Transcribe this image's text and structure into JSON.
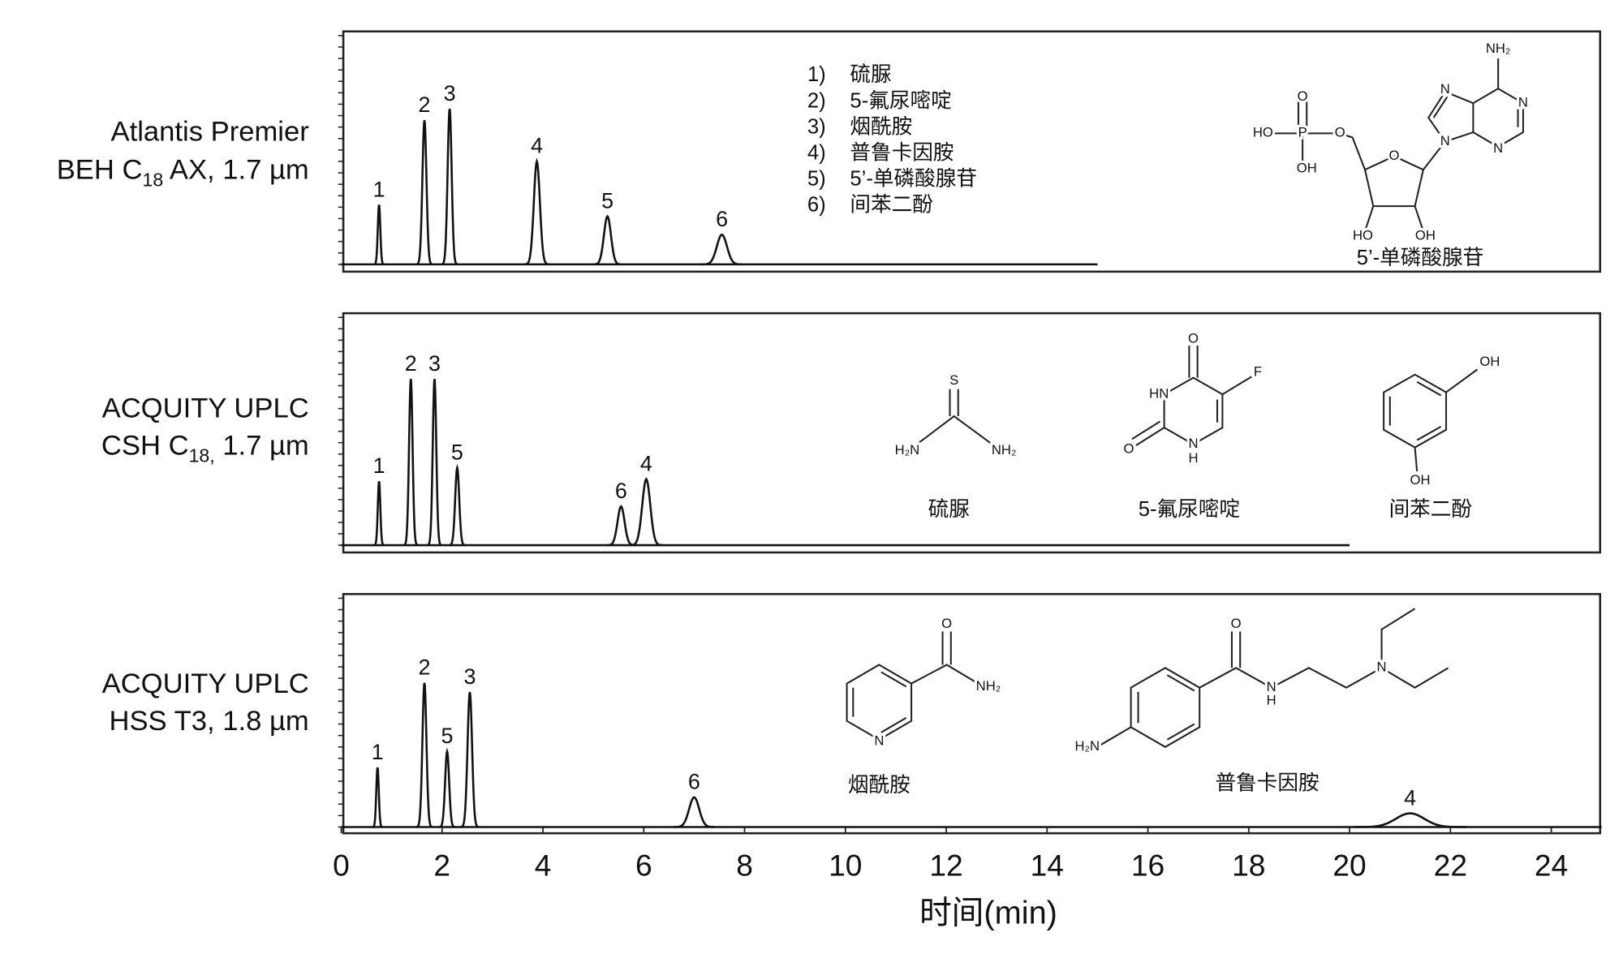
{
  "chart_data": [
    {
      "type": "line",
      "label": {
        "line1": "Atlantis Premier",
        "line2": "BEH C",
        "sub": "18",
        "line2_end": " AX, 1.7 µm"
      },
      "xlim": [
        0,
        25
      ],
      "ylim": [
        0,
        100
      ],
      "yticks": [
        0,
        5,
        10,
        15,
        20,
        25,
        30,
        35,
        40,
        45,
        50,
        55,
        60,
        65,
        70,
        75,
        80,
        85,
        90,
        95,
        100
      ],
      "x_end": 15,
      "peaks": {
        "x": [
          0.75,
          1.65,
          2.15,
          3.88,
          5.28,
          7.55
        ],
        "values": [
          26,
          63,
          68,
          45,
          21,
          13
        ],
        "widths": [
          0.025,
          0.04,
          0.04,
          0.06,
          0.07,
          0.1
        ],
        "labels": [
          "1",
          "2",
          "3",
          "4",
          "5",
          "6"
        ],
        "colors": [
          "#111111",
          "#111111",
          "#1b7fa6",
          "#1b7fa6",
          "#c8202a",
          "#111111"
        ]
      }
    },
    {
      "type": "line",
      "label": {
        "line1": "ACQUITY UPLC",
        "line2": "CSH C",
        "sub": "18,",
        "line2_end": " 1.7 µm"
      },
      "xlim": [
        0,
        25
      ],
      "ylim": [
        0,
        100
      ],
      "yticks": [
        0,
        5,
        10,
        15,
        20,
        25,
        30,
        35,
        40,
        45,
        50,
        55,
        60,
        65,
        70,
        75,
        80,
        85,
        90,
        95,
        100
      ],
      "x_end": 20,
      "peaks": {
        "x": [
          0.75,
          1.38,
          1.85,
          2.3,
          5.55,
          6.05
        ],
        "values": [
          28,
          73,
          73,
          34,
          17,
          29
        ],
        "widths": [
          0.025,
          0.035,
          0.035,
          0.04,
          0.07,
          0.08
        ],
        "labels": [
          "1",
          "2",
          "3",
          "5",
          "6",
          "4"
        ],
        "colors": [
          "#111111",
          "#111111",
          "#1b7fa6",
          "#c8202a",
          "#111111",
          "#1b7fa6"
        ]
      }
    },
    {
      "type": "line",
      "label": {
        "line1": "ACQUITY UPLC",
        "line2": "HSS T3, 1.8 µm"
      },
      "xlim": [
        0,
        25
      ],
      "ylim": [
        0,
        100
      ],
      "yticks": [
        0,
        5,
        10,
        15,
        20,
        25,
        30,
        35,
        40,
        45,
        50,
        55,
        60,
        65,
        70,
        75,
        80,
        85,
        90,
        95,
        100
      ],
      "x_end": 25,
      "peaks": {
        "x": [
          0.72,
          1.65,
          2.1,
          2.55,
          7.0,
          21.2
        ],
        "values": [
          26,
          63,
          33,
          59,
          13,
          6
        ],
        "widths": [
          0.025,
          0.04,
          0.04,
          0.045,
          0.1,
          0.28
        ],
        "labels": [
          "1",
          "2",
          "5",
          "3",
          "6",
          "4"
        ],
        "colors": [
          "#111111",
          "#111111",
          "#c8202a",
          "#1b7fa6",
          "#111111",
          "#1b7fa6"
        ]
      },
      "xticks": [
        0,
        2,
        4,
        6,
        8,
        10,
        12,
        14,
        16,
        18,
        20,
        22,
        24
      ],
      "xlabel": "时间(min)"
    }
  ],
  "legend": [
    {
      "number": "1)",
      "name": "硫脲",
      "color": "#111111"
    },
    {
      "number": "2)",
      "name": "5-氟尿嘧啶",
      "color": "#111111"
    },
    {
      "number": "3)",
      "name": "烟酰胺",
      "color": "#1b7fa6"
    },
    {
      "number": "4)",
      "name": "普鲁卡因胺",
      "color": "#1b7fa6"
    },
    {
      "number": "5)",
      "name": "5’-单磷酸腺苷",
      "color": "#c8202a"
    },
    {
      "number": "6)",
      "name": "间苯二酚",
      "color": "#111111"
    }
  ],
  "structures": [
    {
      "name": "5’-单磷酸腺苷",
      "color": "#c8202a",
      "atoms": [
        "NH₂",
        "N",
        "N",
        "N",
        "N",
        "HO",
        "P",
        "O",
        "OH",
        "O",
        "O",
        "HO",
        "OH"
      ]
    },
    {
      "name": "硫脲",
      "color": "#111111",
      "atoms": [
        "S",
        "H₂N",
        "NH₂"
      ]
    },
    {
      "name": "5-氟尿嘧啶",
      "color": "#111111",
      "atoms": [
        "O",
        "F",
        "HN",
        "O",
        "N",
        "H"
      ]
    },
    {
      "name": "间苯二酚",
      "color": "#111111",
      "atoms": [
        "OH",
        "OH"
      ]
    },
    {
      "name": "烟酰胺",
      "color": "#1b7fa6",
      "atoms": [
        "O",
        "NH₂",
        "N"
      ]
    },
    {
      "name": "普鲁卡因胺",
      "color": "#1b7fa6",
      "atoms": [
        "O",
        "H₂N",
        "N",
        "H",
        "N"
      ]
    }
  ]
}
